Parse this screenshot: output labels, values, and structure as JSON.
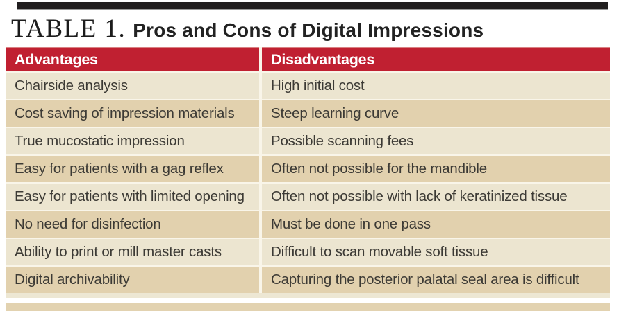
{
  "page": {
    "title_label": "TABLE 1.",
    "title_text": "Pros and Cons of Digital Impressions"
  },
  "table": {
    "headers": [
      "Advantages",
      "Disadvantages"
    ],
    "rows": [
      [
        "Chairside analysis",
        "High initial cost"
      ],
      [
        "Cost saving of impression materials",
        "Steep learning curve"
      ],
      [
        "True mucostatic impression",
        "Possible scanning fees"
      ],
      [
        "Easy for patients with a gag reflex",
        "Often not possible for the mandible"
      ],
      [
        "Easy for patients with limited opening",
        "Often not possible with lack of keratinized tissue"
      ],
      [
        "No need for disinfection",
        "Must be done in one pass"
      ],
      [
        "Ability to print or mill master casts",
        "Difficult to scan movable soft tissue"
      ],
      [
        "Digital archivability",
        "Capturing the posterior palatal seal area is difficult"
      ]
    ]
  },
  "colors": {
    "top_bar": "#211E1F",
    "header_bg": "#C02031",
    "header_text": "#FFFFFF",
    "row_light": "#ECE5D0",
    "row_dark": "#E2D1AE",
    "separator": "#F9F5E9",
    "body_text": "#3C3A35",
    "bottom_strip": "#E2D2B0"
  }
}
